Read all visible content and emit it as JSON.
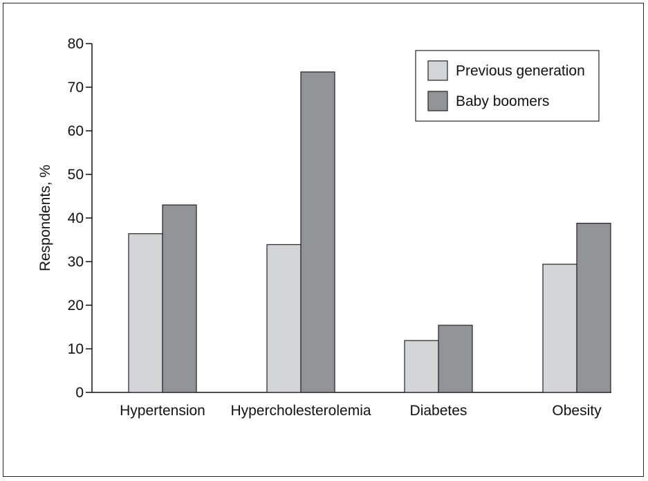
{
  "chart_data": {
    "type": "bar",
    "categories": [
      "Hypertension",
      "Hypercholesterolemia",
      "Diabetes",
      "Obesity"
    ],
    "series": [
      {
        "name": "Previous generation",
        "color": "#d3d4d6",
        "values": [
          36.4,
          33.9,
          11.9,
          29.4
        ]
      },
      {
        "name": "Baby boomers",
        "color": "#929396",
        "values": [
          43.0,
          73.5,
          15.4,
          38.8
        ]
      }
    ],
    "ylabel": "Respondents, %",
    "xlabel": "",
    "ylim": [
      0,
      80
    ],
    "yticks": [
      0,
      10,
      20,
      30,
      40,
      50,
      60,
      70,
      80
    ],
    "grid": false,
    "legend_position": "top-right"
  }
}
